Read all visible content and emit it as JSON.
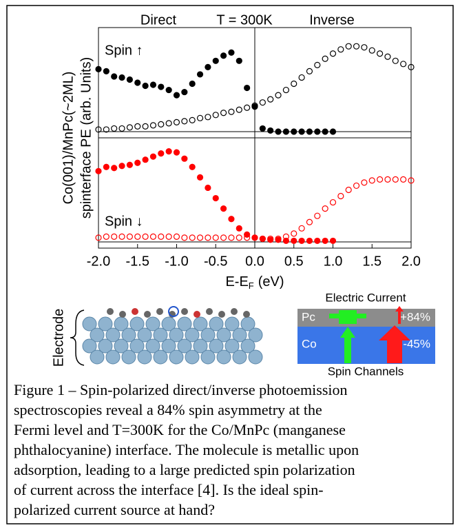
{
  "figure": {
    "ylabel": "Co(001)/MnPc(~2ML)",
    "ylabel_inner": "spinterface PE (arb. Units)",
    "header": [
      "Direct",
      "T = 300K",
      "Inverse"
    ]
  },
  "chart_data": [
    {
      "type": "scatter",
      "annotation": "Spin ↑",
      "xlim": [
        -2,
        2
      ],
      "ylim": [
        -0.06,
        1
      ],
      "series": [
        {
          "color": "#000000",
          "filled": true,
          "x": [
            -2.0,
            -1.9,
            -1.8,
            -1.7,
            -1.6,
            -1.5,
            -1.4,
            -1.3,
            -1.2,
            -1.1,
            -1.0,
            -0.9,
            -0.8,
            -0.7,
            -0.6,
            -0.5,
            -0.4,
            -0.3,
            -0.2,
            -0.1,
            0.0,
            0.1,
            0.2,
            0.3,
            0.4,
            0.5,
            0.6,
            0.7,
            0.8,
            0.9,
            1.0
          ],
          "values": [
            0.6,
            0.58,
            0.53,
            0.52,
            0.5,
            0.47,
            0.44,
            0.45,
            0.43,
            0.4,
            0.35,
            0.38,
            0.46,
            0.55,
            0.62,
            0.68,
            0.73,
            0.76,
            0.68,
            0.42,
            0.24,
            0.03,
            0.01,
            0,
            0,
            0,
            0,
            0,
            0,
            0,
            0
          ]
        },
        {
          "color": "#000000",
          "filled": false,
          "x": [
            -2.0,
            -1.9,
            -1.8,
            -1.7,
            -1.6,
            -1.5,
            -1.4,
            -1.3,
            -1.2,
            -1.1,
            -1.0,
            -0.9,
            -0.8,
            -0.7,
            -0.6,
            -0.5,
            -0.4,
            -0.3,
            -0.2,
            -0.1,
            0.0,
            0.1,
            0.2,
            0.3,
            0.4,
            0.5,
            0.6,
            0.7,
            0.8,
            0.9,
            1.0,
            1.1,
            1.2,
            1.3,
            1.4,
            1.5,
            1.6,
            1.7,
            1.8,
            1.9,
            2.0
          ],
          "values": [
            0.02,
            0.02,
            0.03,
            0.03,
            0.04,
            0.05,
            0.05,
            0.06,
            0.07,
            0.08,
            0.09,
            0.1,
            0.11,
            0.13,
            0.14,
            0.16,
            0.18,
            0.19,
            0.21,
            0.23,
            0.25,
            0.28,
            0.31,
            0.35,
            0.4,
            0.46,
            0.52,
            0.58,
            0.64,
            0.7,
            0.75,
            0.79,
            0.82,
            0.82,
            0.81,
            0.78,
            0.75,
            0.72,
            0.68,
            0.65,
            0.62
          ]
        }
      ]
    },
    {
      "type": "scatter",
      "annotation": "Spin ↓",
      "xlim": [
        -2,
        2
      ],
      "ylim": [
        -0.06,
        1
      ],
      "xticks": [
        {
          "value": -2,
          "label": "-2.0"
        },
        {
          "value": -1.5,
          "label": "-1.5"
        },
        {
          "value": -1,
          "label": "-1.0"
        },
        {
          "value": -0.5,
          "label": "-0.5"
        },
        {
          "value": 0,
          "label": "0.0"
        },
        0.5,
        {
          "value": 1,
          "label": "1.0"
        },
        1.5,
        {
          "value": 2,
          "label": "2.0"
        }
      ],
      "xlabel": "E-E",
      "xlabel_sub": "F",
      "xlabel_unit": "(eV)",
      "series": [
        {
          "color": "#ff0000",
          "filled": true,
          "x": [
            -2.0,
            -1.9,
            -1.8,
            -1.7,
            -1.6,
            -1.5,
            -1.4,
            -1.3,
            -1.2,
            -1.1,
            -1.0,
            -0.9,
            -0.8,
            -0.7,
            -0.6,
            -0.5,
            -0.4,
            -0.3,
            -0.2,
            -0.1,
            0.0,
            0.1,
            0.2,
            0.3,
            0.4,
            0.5,
            0.6,
            0.7,
            0.8,
            0.9,
            1.0
          ],
          "values": [
            0.68,
            0.72,
            0.71,
            0.73,
            0.74,
            0.76,
            0.79,
            0.82,
            0.85,
            0.87,
            0.86,
            0.8,
            0.72,
            0.62,
            0.52,
            0.42,
            0.32,
            0.22,
            0.13,
            0.07,
            0.04,
            0.03,
            0.02,
            0.02,
            0.01,
            0.01,
            0.01,
            0.01,
            0.01,
            0.01,
            0.01
          ]
        },
        {
          "color": "#ff0000",
          "filled": false,
          "x": [
            -2.0,
            -1.9,
            -1.8,
            -1.7,
            -1.6,
            -1.5,
            -1.4,
            -1.3,
            -1.2,
            -1.1,
            -1.0,
            -0.9,
            -0.8,
            -0.7,
            -0.6,
            -0.5,
            -0.4,
            -0.3,
            -0.2,
            -0.1,
            0.0,
            0.1,
            0.2,
            0.3,
            0.4,
            0.5,
            0.6,
            0.7,
            0.8,
            0.9,
            1.0,
            1.1,
            1.2,
            1.3,
            1.4,
            1.5,
            1.6,
            1.7,
            1.8,
            1.9,
            2.0
          ],
          "values": [
            0.04,
            0.05,
            0.05,
            0.05,
            0.05,
            0.05,
            0.05,
            0.05,
            0.05,
            0.05,
            0.05,
            0.04,
            0.04,
            0.04,
            0.04,
            0.04,
            0.04,
            0.04,
            0.04,
            0.04,
            0.04,
            0.03,
            0.03,
            0.03,
            0.05,
            0.08,
            0.13,
            0.19,
            0.25,
            0.32,
            0.38,
            0.44,
            0.5,
            0.54,
            0.57,
            0.59,
            0.6,
            0.6,
            0.6,
            0.6,
            0.59
          ]
        }
      ]
    }
  ],
  "illustration": {
    "electrode": "Electrode",
    "current": "Electric Current",
    "channels": "Spin Channels",
    "pc": "Pc",
    "pc_value": "+84%",
    "co": "Co",
    "co_value": "-45%"
  },
  "caption": [
    "Figure 1 – Spin-polarized direct/inverse photoemission",
    "spectroscopies reveal a 84% spin asymmetry at the",
    "Fermi level and T=300K for the Co/MnPc (manganese",
    "phthalocyanine) interface. The molecule is metallic upon",
    "adsorption, leading to a large predicted spin polarization",
    "of current across the interface [4]. Is the ideal spin-",
    "polarized current source at hand?"
  ]
}
